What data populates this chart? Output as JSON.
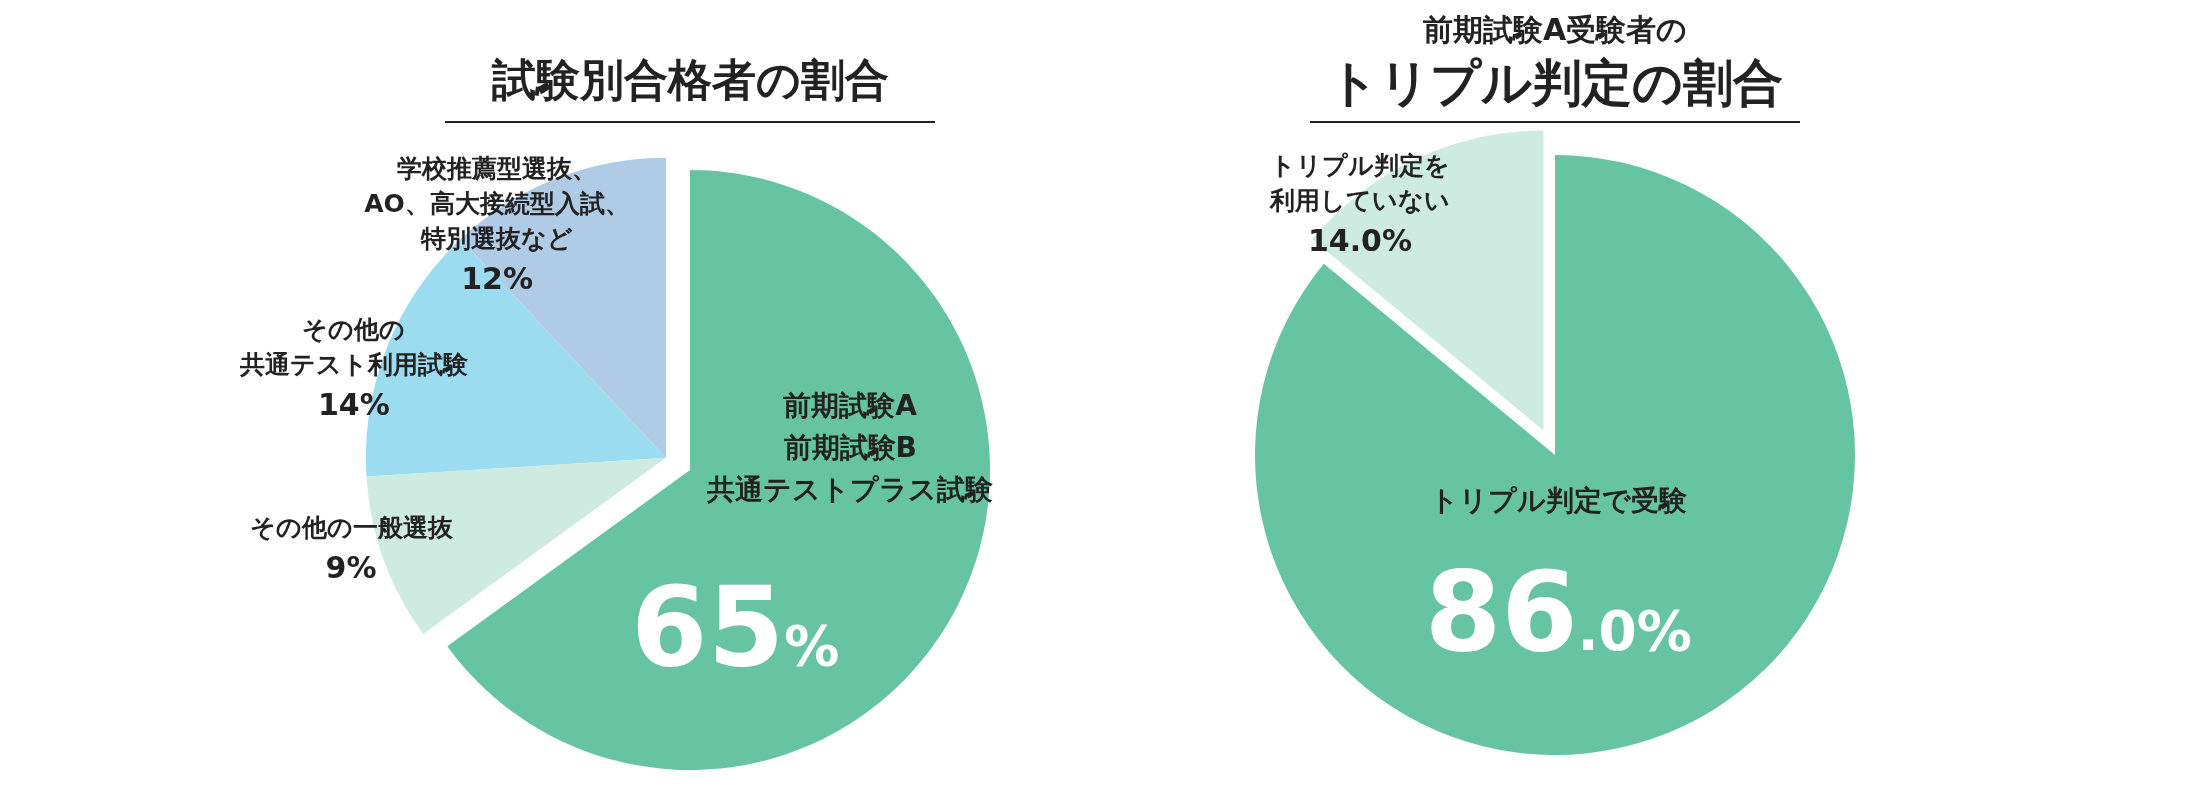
{
  "chart_data": [
    {
      "type": "pie",
      "title": "試験別合格者の割合",
      "categories": [
        "前期試験A前期試験B共通テストプラス試験",
        "その他の一般選抜",
        "その他の共通テスト利用試験",
        "学校推薦型選抜、AO、高大接続型入試、特別選抜など"
      ],
      "values": [
        65,
        9,
        14,
        12
      ],
      "value_labels": [
        "65%",
        "9%",
        "14%",
        "12%"
      ],
      "colors": [
        "#66c4a2",
        "#cdebe1",
        "#9cdcf0",
        "#afcbe6"
      ]
    },
    {
      "type": "pie",
      "title": "トリプル判定の割合",
      "subtitle": "前期試験A受験者の",
      "categories": [
        "トリプル判定で受験",
        "トリプル判定を利用していない"
      ],
      "values": [
        86.0,
        14.0
      ],
      "value_labels": [
        "86.0%",
        "14.0%"
      ],
      "colors": [
        "#66c4a2",
        "#cdebe1"
      ]
    }
  ]
}
